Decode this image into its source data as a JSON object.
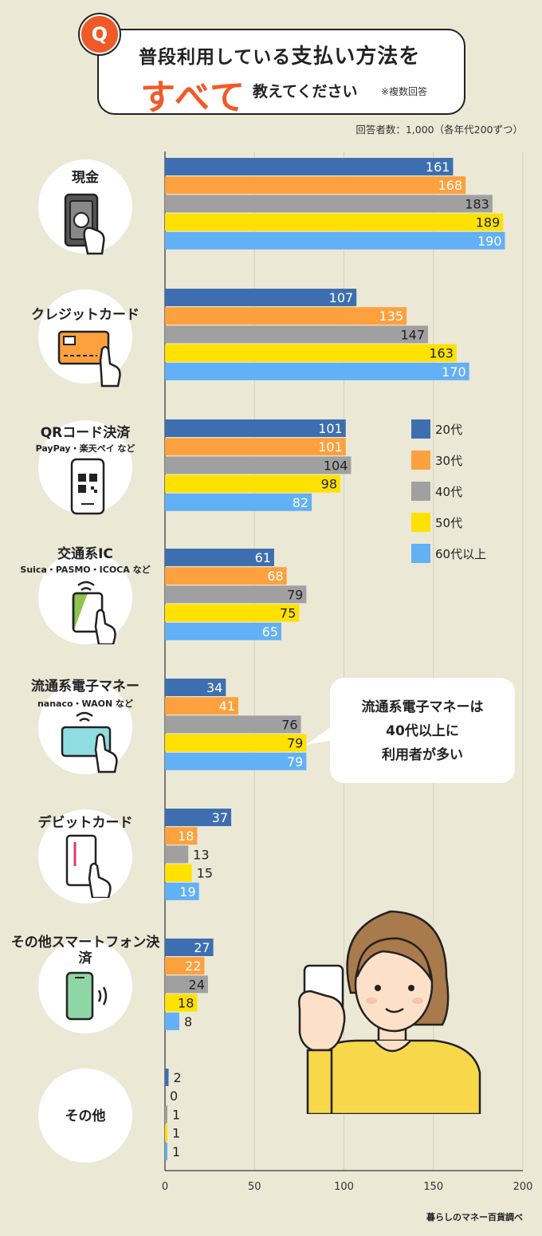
{
  "title": {
    "q_mark": "Q",
    "line1_a": "普段利用している",
    "line1_b": "支払い方法を",
    "emphasis": "すべて",
    "line2": "教えてください",
    "note": "※複数回答"
  },
  "respondents": "回答者数：1,000（各年代200ずつ）",
  "source": "暮らしのマネー百貨調べ",
  "callout": {
    "line1": "流通系電子マネーは",
    "line2": "40代以上に",
    "line3": "利用者が多い"
  },
  "colors": {
    "20代": "#3d6fb0",
    "30代": "#fda13e",
    "40代": "#a0a0a0",
    "50代": "#ffe100",
    "60代以上": "#62b0f5"
  },
  "chart_data": {
    "type": "bar",
    "orientation": "horizontal",
    "categories": [
      "現金",
      "クレジットカード",
      "QRコード決済",
      "交通系IC",
      "流通系電子マネー",
      "デビットカード",
      "その他スマートフォン決済",
      "その他"
    ],
    "category_sublabels": [
      "",
      "",
      "PayPay・楽天ペイ など",
      "Suica・PASMO・ICOCA など",
      "nanaco・WAON など",
      "",
      "",
      ""
    ],
    "series": [
      {
        "name": "20代",
        "color": "#3d6fb0",
        "values": [
          161,
          107,
          101,
          61,
          34,
          37,
          27,
          2
        ]
      },
      {
        "name": "30代",
        "color": "#fda13e",
        "values": [
          168,
          135,
          101,
          68,
          41,
          18,
          22,
          0
        ]
      },
      {
        "name": "40代",
        "color": "#a0a0a0",
        "values": [
          183,
          147,
          104,
          79,
          76,
          13,
          24,
          1
        ]
      },
      {
        "name": "50代",
        "color": "#ffe100",
        "values": [
          189,
          163,
          98,
          75,
          79,
          15,
          18,
          1
        ]
      },
      {
        "name": "60代以上",
        "color": "#62b0f5",
        "values": [
          190,
          170,
          82,
          65,
          79,
          19,
          8,
          1
        ]
      }
    ],
    "x_ticks": [
      "0",
      "50",
      "100",
      "150",
      "200"
    ],
    "xlim": [
      0,
      200
    ],
    "grid": true,
    "legend_position": "right-middle"
  }
}
